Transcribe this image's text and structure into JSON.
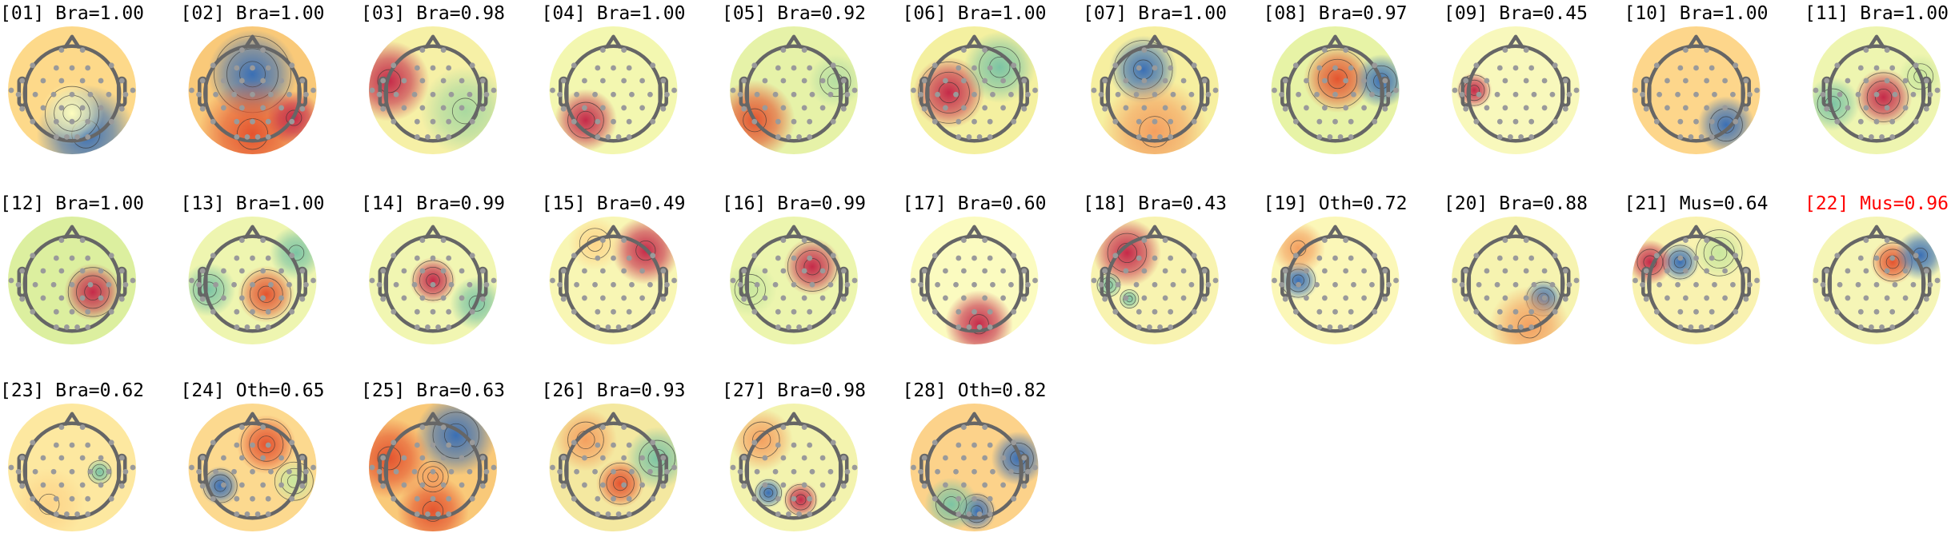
{
  "components": [
    {
      "title": "[01] Bra=1.00",
      "color": "#000000"
    },
    {
      "title": "[02] Bra=1.00",
      "color": "#000000"
    },
    {
      "title": "[03] Bra=0.98",
      "color": "#000000"
    },
    {
      "title": "[04] Bra=1.00",
      "color": "#000000"
    },
    {
      "title": "[05] Bra=0.92",
      "color": "#000000"
    },
    {
      "title": "[06] Bra=1.00",
      "color": "#000000"
    },
    {
      "title": "[07] Bra=1.00",
      "color": "#000000"
    },
    {
      "title": "[08] Bra=0.97",
      "color": "#000000"
    },
    {
      "title": "[09] Bra=0.45",
      "color": "#000000"
    },
    {
      "title": "[10] Bra=1.00",
      "color": "#000000"
    },
    {
      "title": "[11] Bra=1.00",
      "color": "#000000"
    },
    {
      "title": "[12] Bra=1.00",
      "color": "#000000"
    },
    {
      "title": "[13] Bra=1.00",
      "color": "#000000"
    },
    {
      "title": "[14] Bra=0.99",
      "color": "#000000"
    },
    {
      "title": "[15] Bra=0.49",
      "color": "#000000"
    },
    {
      "title": "[16] Bra=0.99",
      "color": "#000000"
    },
    {
      "title": "[17] Bra=0.60",
      "color": "#000000"
    },
    {
      "title": "[18] Bra=0.43",
      "color": "#000000"
    },
    {
      "title": "[19] Oth=0.72",
      "color": "#000000"
    },
    {
      "title": "[20] Bra=0.88",
      "color": "#000000"
    },
    {
      "title": "[21] Mus=0.64",
      "color": "#000000"
    },
    {
      "title": "[22] Mus=0.96",
      "color": "#ff0000"
    },
    {
      "title": "[23] Bra=0.62",
      "color": "#000000"
    },
    {
      "title": "[24] Oth=0.65",
      "color": "#000000"
    },
    {
      "title": "[25] Bra=0.63",
      "color": "#000000"
    },
    {
      "title": "[26] Bra=0.93",
      "color": "#000000"
    },
    {
      "title": "[27] Bra=0.98",
      "color": "#000000"
    },
    {
      "title": "[28] Oth=0.82",
      "color": "#000000"
    }
  ],
  "colormap": [
    "#3a6fb5",
    "#7cc4a4",
    "#e6f4a6",
    "#fefebe",
    "#fdd58a",
    "#f07a42",
    "#c52a49"
  ]
}
